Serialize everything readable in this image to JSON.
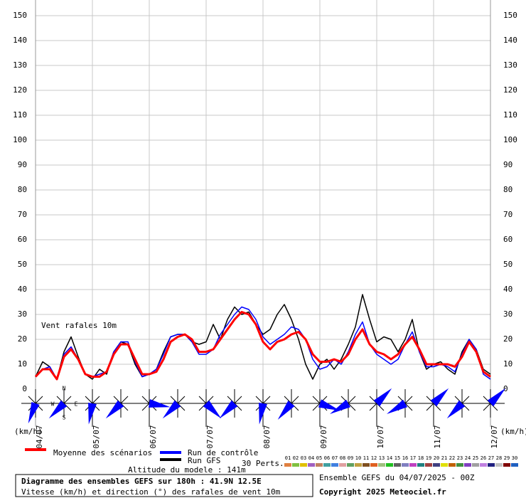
{
  "chart_data": {
    "type": "line",
    "annotation": "Vent rafales 10m",
    "y_unit": "(km/h)",
    "x": [
      0,
      3,
      6,
      9,
      12,
      15,
      18,
      21,
      24,
      27,
      30,
      33,
      36,
      39,
      42,
      45,
      48,
      51,
      54,
      57,
      60,
      63,
      66,
      69,
      72,
      75,
      78,
      81,
      84,
      87,
      90,
      93,
      96,
      99,
      102,
      105,
      108,
      111,
      114,
      117,
      120,
      123,
      126,
      129,
      132,
      135,
      138,
      141,
      144,
      147,
      150,
      153,
      156,
      159,
      162,
      165,
      168,
      171,
      174,
      177,
      180,
      183,
      186,
      189,
      192
    ],
    "xlim": [
      0,
      192
    ],
    "xticks": [
      {
        "value": 0,
        "label": "04/07"
      },
      {
        "value": 24,
        "label": "05/07"
      },
      {
        "value": 48,
        "label": "06/07"
      },
      {
        "value": 72,
        "label": "07/07"
      },
      {
        "value": 96,
        "label": "08/07"
      },
      {
        "value": 120,
        "label": "09/07"
      },
      {
        "value": 144,
        "label": "10/07"
      },
      {
        "value": 168,
        "label": "11/07"
      },
      {
        "value": 192,
        "label": "12/07"
      }
    ],
    "ylim": [
      0,
      150
    ],
    "yticks": [
      0,
      10,
      20,
      30,
      40,
      50,
      60,
      70,
      80,
      90,
      100,
      110,
      120,
      130,
      140,
      150
    ],
    "grid": true,
    "series": [
      {
        "name": "Moyenne des scénarios",
        "color": "#ff0000",
        "width": 3,
        "values": [
          5,
          8,
          8,
          4,
          13,
          16,
          12,
          6,
          5,
          5,
          7,
          14,
          18,
          18,
          12,
          6,
          6,
          7,
          12,
          19,
          21,
          22,
          20,
          15,
          15,
          16,
          20,
          24,
          28,
          31,
          30,
          26,
          19,
          16,
          19,
          20,
          22,
          23,
          20,
          14,
          11,
          11,
          12,
          11,
          14,
          20,
          24,
          18,
          15,
          14,
          12,
          14,
          18,
          21,
          16,
          10,
          10,
          10,
          10,
          9,
          13,
          19,
          15,
          7,
          5
        ]
      },
      {
        "name": "Run de contrôle",
        "color": "#0000ff",
        "width": 1.5,
        "values": [
          5,
          8,
          9,
          4,
          14,
          17,
          12,
          6,
          5,
          6,
          7,
          15,
          19,
          19,
          11,
          5,
          6,
          8,
          14,
          21,
          22,
          22,
          19,
          14,
          14,
          16,
          22,
          26,
          30,
          33,
          32,
          28,
          21,
          18,
          20,
          22,
          25,
          24,
          20,
          12,
          8,
          9,
          12,
          10,
          15,
          22,
          27,
          18,
          14,
          12,
          10,
          12,
          18,
          23,
          15,
          9,
          9,
          10,
          9,
          7,
          14,
          20,
          16,
          6,
          4
        ]
      },
      {
        "name": "Run GFS",
        "color": "#000000",
        "width": 1.5,
        "values": [
          5,
          11,
          9,
          4,
          15,
          21,
          13,
          6,
          4,
          8,
          6,
          15,
          19,
          18,
          10,
          5,
          6,
          8,
          15,
          21,
          22,
          22,
          19,
          18,
          19,
          26,
          20,
          28,
          33,
          30,
          31,
          26,
          22,
          24,
          30,
          34,
          28,
          20,
          10,
          4,
          10,
          12,
          8,
          12,
          18,
          25,
          38,
          28,
          19,
          21,
          20,
          15,
          20,
          28,
          15,
          8,
          10,
          11,
          8,
          6,
          15,
          20,
          16,
          8,
          6
        ]
      }
    ],
    "members_label": "30 Perts.",
    "members": [
      {
        "name": "01",
        "color": "#e08040"
      },
      {
        "name": "02",
        "color": "#80c040"
      },
      {
        "name": "03",
        "color": "#e0c000"
      },
      {
        "name": "04",
        "color": "#a060c0"
      },
      {
        "name": "05",
        "color": "#c08060"
      },
      {
        "name": "06",
        "color": "#40a0a0"
      },
      {
        "name": "07",
        "color": "#4080e0"
      },
      {
        "name": "08",
        "color": "#e0a0a0"
      },
      {
        "name": "09",
        "color": "#60a060"
      },
      {
        "name": "10",
        "color": "#c0a040"
      },
      {
        "name": "11",
        "color": "#805020"
      },
      {
        "name": "12",
        "color": "#e06020"
      },
      {
        "name": "13",
        "color": "#a0c080"
      },
      {
        "name": "14",
        "color": "#20c020"
      },
      {
        "name": "15",
        "color": "#606060"
      },
      {
        "name": "16",
        "color": "#8080c0"
      },
      {
        "name": "17",
        "color": "#c040c0"
      },
      {
        "name": "18",
        "color": "#208080"
      },
      {
        "name": "19",
        "color": "#a04040"
      },
      {
        "name": "20",
        "color": "#404080"
      },
      {
        "name": "21",
        "color": "#e0e000"
      },
      {
        "name": "22",
        "color": "#c06000"
      },
      {
        "name": "23",
        "color": "#409040"
      },
      {
        "name": "24",
        "color": "#8040c0"
      },
      {
        "name": "25",
        "color": "#a0a0a0"
      },
      {
        "name": "26",
        "color": "#c080e0"
      },
      {
        "name": "27",
        "color": "#202080"
      },
      {
        "name": "28",
        "color": "#c0c0c0"
      },
      {
        "name": "29",
        "color": "#800000"
      },
      {
        "name": "30",
        "color": "#2060c0"
      }
    ],
    "wind_x": [
      0,
      12,
      24,
      36,
      48,
      60,
      72,
      84,
      96,
      108,
      120,
      132,
      144,
      156,
      168,
      180,
      192
    ],
    "wind_dir": [
      200,
      225,
      190,
      225,
      100,
      225,
      135,
      225,
      190,
      220,
      110,
      240,
      45,
      240,
      45,
      225,
      45
    ],
    "wind_color": "#0000ff",
    "compass_labels": [
      "N",
      "W",
      "E",
      "S"
    ],
    "altitude": "Altitude du modele : 141m",
    "title": "Diagramme des ensembles GEFS sur 180h : 41.9N 12.5E",
    "subtitle": "Vitesse (km/h) et direction (°) des rafales de vent 10m",
    "run_info": "Ensemble GEFS du 04/07/2025 - 00Z",
    "copyright": "Copyright 2025 Meteociel.fr"
  }
}
